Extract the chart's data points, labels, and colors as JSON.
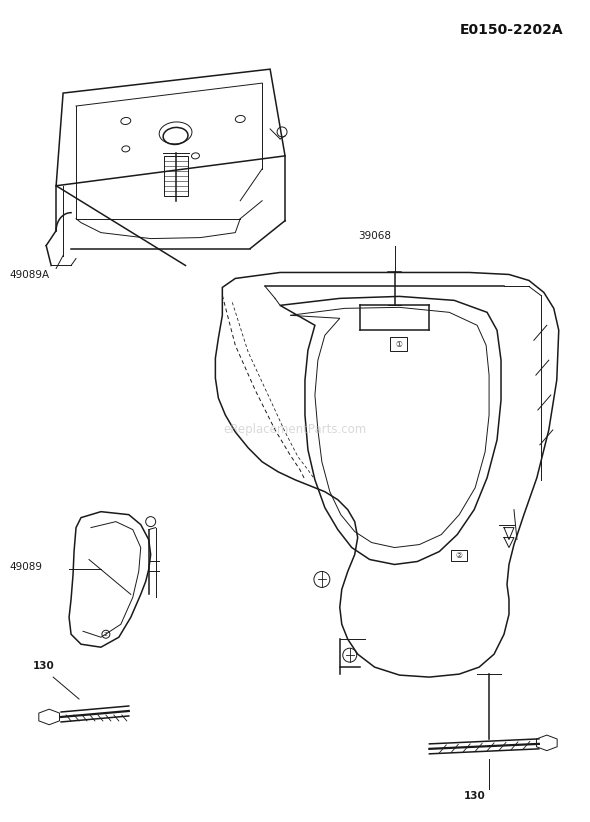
{
  "title_code": "E0150-2202A",
  "background_color": "#ffffff",
  "line_color": "#1a1a1a",
  "watermark": "eReplacementParts.com",
  "lw_main": 1.1,
  "lw_thin": 0.7,
  "lw_thick": 1.6
}
